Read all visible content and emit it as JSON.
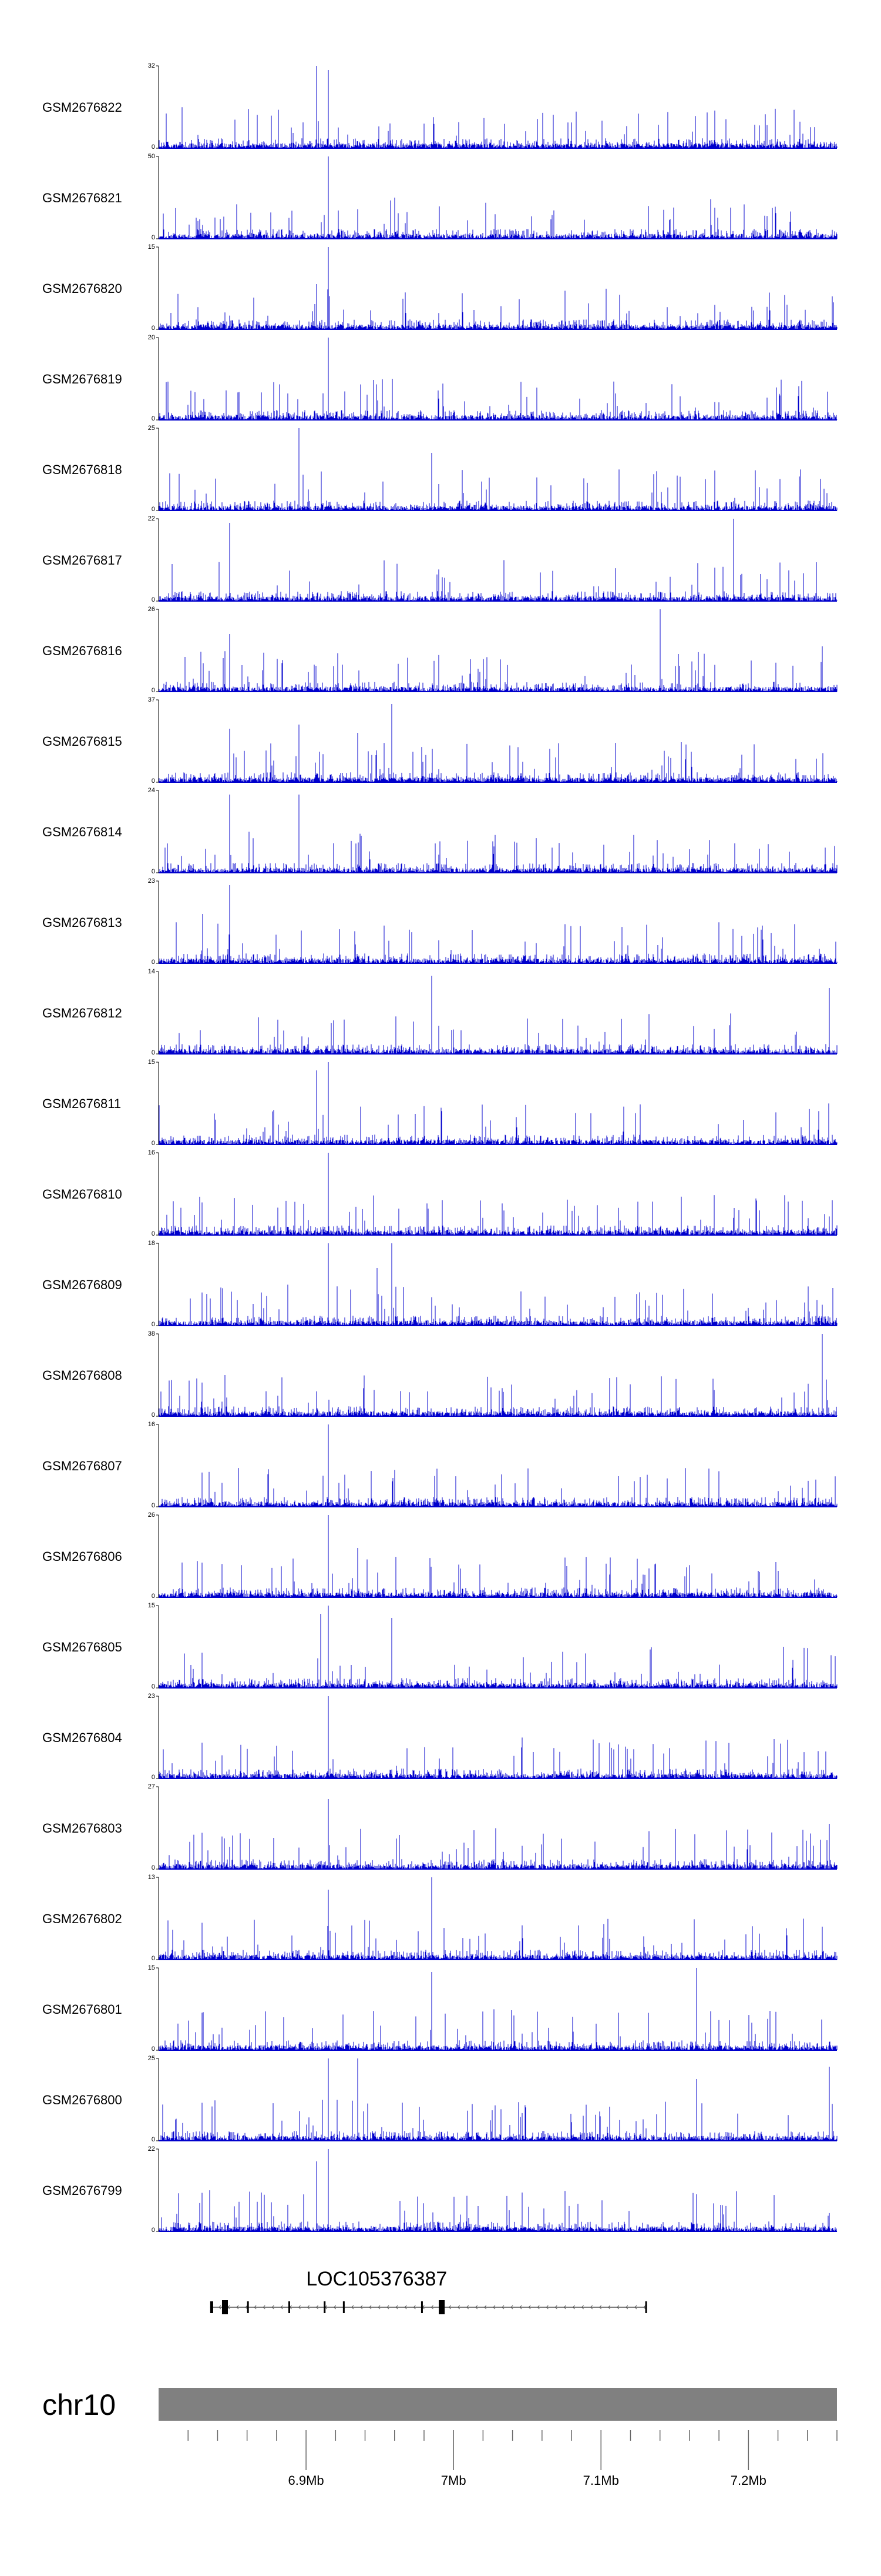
{
  "chart_data": {
    "type": "genome-coverage-tracks",
    "chromosome": "chr10",
    "region_mb": [
      6.8,
      7.26
    ],
    "tracks": [
      {
        "name": "GSM2676822",
        "ymax": 32,
        "ymin": 0,
        "peaks": [
          [
            6.907,
            1.0
          ],
          [
            6.915,
            0.95
          ]
        ]
      },
      {
        "name": "GSM2676821",
        "ymax": 50,
        "ymin": 0,
        "peaks": [
          [
            6.915,
            1.0
          ],
          [
            6.96,
            0.5
          ]
        ]
      },
      {
        "name": "GSM2676820",
        "ymax": 15,
        "ymin": 0,
        "peaks": [
          [
            6.915,
            1.0
          ],
          [
            6.907,
            0.55
          ]
        ]
      },
      {
        "name": "GSM2676819",
        "ymax": 20,
        "ymin": 0,
        "peaks": [
          [
            6.915,
            1.0
          ]
        ]
      },
      {
        "name": "GSM2676818",
        "ymax": 25,
        "ymin": 0,
        "peaks": [
          [
            6.895,
            1.0
          ],
          [
            6.985,
            0.7
          ]
        ]
      },
      {
        "name": "GSM2676817",
        "ymax": 22,
        "ymin": 0,
        "peaks": [
          [
            6.848,
            0.95
          ],
          [
            7.19,
            1.0
          ]
        ]
      },
      {
        "name": "GSM2676816",
        "ymax": 26,
        "ymin": 0,
        "peaks": [
          [
            6.848,
            0.7
          ],
          [
            7.14,
            1.0
          ],
          [
            7.25,
            0.55
          ]
        ]
      },
      {
        "name": "GSM2676815",
        "ymax": 37,
        "ymin": 0,
        "peaks": [
          [
            6.848,
            0.65
          ],
          [
            6.895,
            0.7
          ],
          [
            6.958,
            0.95
          ],
          [
            6.935,
            0.6
          ]
        ]
      },
      {
        "name": "GSM2676814",
        "ymax": 24,
        "ymin": 0,
        "peaks": [
          [
            6.848,
            0.95
          ],
          [
            6.895,
            0.95
          ]
        ]
      },
      {
        "name": "GSM2676813",
        "ymax": 23,
        "ymin": 0,
        "peaks": [
          [
            6.848,
            0.95
          ],
          [
            6.83,
            0.6
          ]
        ]
      },
      {
        "name": "GSM2676812",
        "ymax": 14,
        "ymin": 0,
        "peaks": [
          [
            6.985,
            0.95
          ],
          [
            7.255,
            0.8
          ]
        ]
      },
      {
        "name": "GSM2676811",
        "ymax": 15,
        "ymin": 0,
        "peaks": [
          [
            6.915,
            1.0
          ],
          [
            6.907,
            0.9
          ]
        ]
      },
      {
        "name": "GSM2676810",
        "ymax": 16,
        "ymin": 0,
        "peaks": [
          [
            6.915,
            1.0
          ]
        ]
      },
      {
        "name": "GSM2676809",
        "ymax": 18,
        "ymin": 0,
        "peaks": [
          [
            6.915,
            1.0
          ],
          [
            6.958,
            1.0
          ],
          [
            6.948,
            0.7
          ]
        ]
      },
      {
        "name": "GSM2676808",
        "ymax": 38,
        "ymin": 0,
        "peaks": [
          [
            7.25,
            1.0
          ],
          [
            6.845,
            0.5
          ]
        ]
      },
      {
        "name": "GSM2676807",
        "ymax": 16,
        "ymin": 0,
        "peaks": [
          [
            6.915,
            1.0
          ]
        ]
      },
      {
        "name": "GSM2676806",
        "ymax": 26,
        "ymin": 0,
        "peaks": [
          [
            6.915,
            1.0
          ],
          [
            6.935,
            0.6
          ]
        ]
      },
      {
        "name": "GSM2676805",
        "ymax": 15,
        "ymin": 0,
        "peaks": [
          [
            6.915,
            1.0
          ],
          [
            6.91,
            0.9
          ],
          [
            6.958,
            0.85
          ]
        ]
      },
      {
        "name": "GSM2676804",
        "ymax": 23,
        "ymin": 0,
        "peaks": [
          [
            6.915,
            1.0
          ]
        ]
      },
      {
        "name": "GSM2676803",
        "ymax": 27,
        "ymin": 0,
        "peaks": [
          [
            6.915,
            0.85
          ],
          [
            7.255,
            0.55
          ]
        ]
      },
      {
        "name": "GSM2676802",
        "ymax": 13,
        "ymin": 0,
        "peaks": [
          [
            6.985,
            1.0
          ],
          [
            6.915,
            0.85
          ]
        ]
      },
      {
        "name": "GSM2676801",
        "ymax": 15,
        "ymin": 0,
        "peaks": [
          [
            7.165,
            1.0
          ],
          [
            6.985,
            0.95
          ]
        ]
      },
      {
        "name": "GSM2676800",
        "ymax": 25,
        "ymin": 0,
        "peaks": [
          [
            6.915,
            1.0
          ],
          [
            6.935,
            1.0
          ],
          [
            7.255,
            0.9
          ],
          [
            7.165,
            0.75
          ]
        ]
      },
      {
        "name": "GSM2676799",
        "ymax": 22,
        "ymin": 0,
        "peaks": [
          [
            6.915,
            1.0
          ],
          [
            6.907,
            0.85
          ],
          [
            7.165,
            0.45
          ]
        ]
      }
    ],
    "gene": {
      "name": "LOC105376387",
      "start_mb": 6.835,
      "end_mb": 7.13,
      "exons_mb": [
        [
          6.835,
          6.837
        ],
        [
          6.843,
          6.847
        ],
        [
          6.86,
          6.861
        ],
        [
          6.888,
          6.889
        ],
        [
          6.912,
          6.913
        ],
        [
          6.925,
          6.926
        ],
        [
          6.978,
          6.979
        ],
        [
          6.99,
          6.994
        ],
        [
          7.13,
          7.131
        ]
      ]
    },
    "ideogram_color": "#808080",
    "signal_color": "#0000cc",
    "axis": {
      "labeled_ticks_mb": [
        6.9,
        7.0,
        7.1,
        7.2
      ],
      "tick_labels": [
        "6.9Mb",
        "7Mb",
        "7.1Mb",
        "7.2Mb"
      ],
      "minor_step_mb": 0.02
    }
  }
}
